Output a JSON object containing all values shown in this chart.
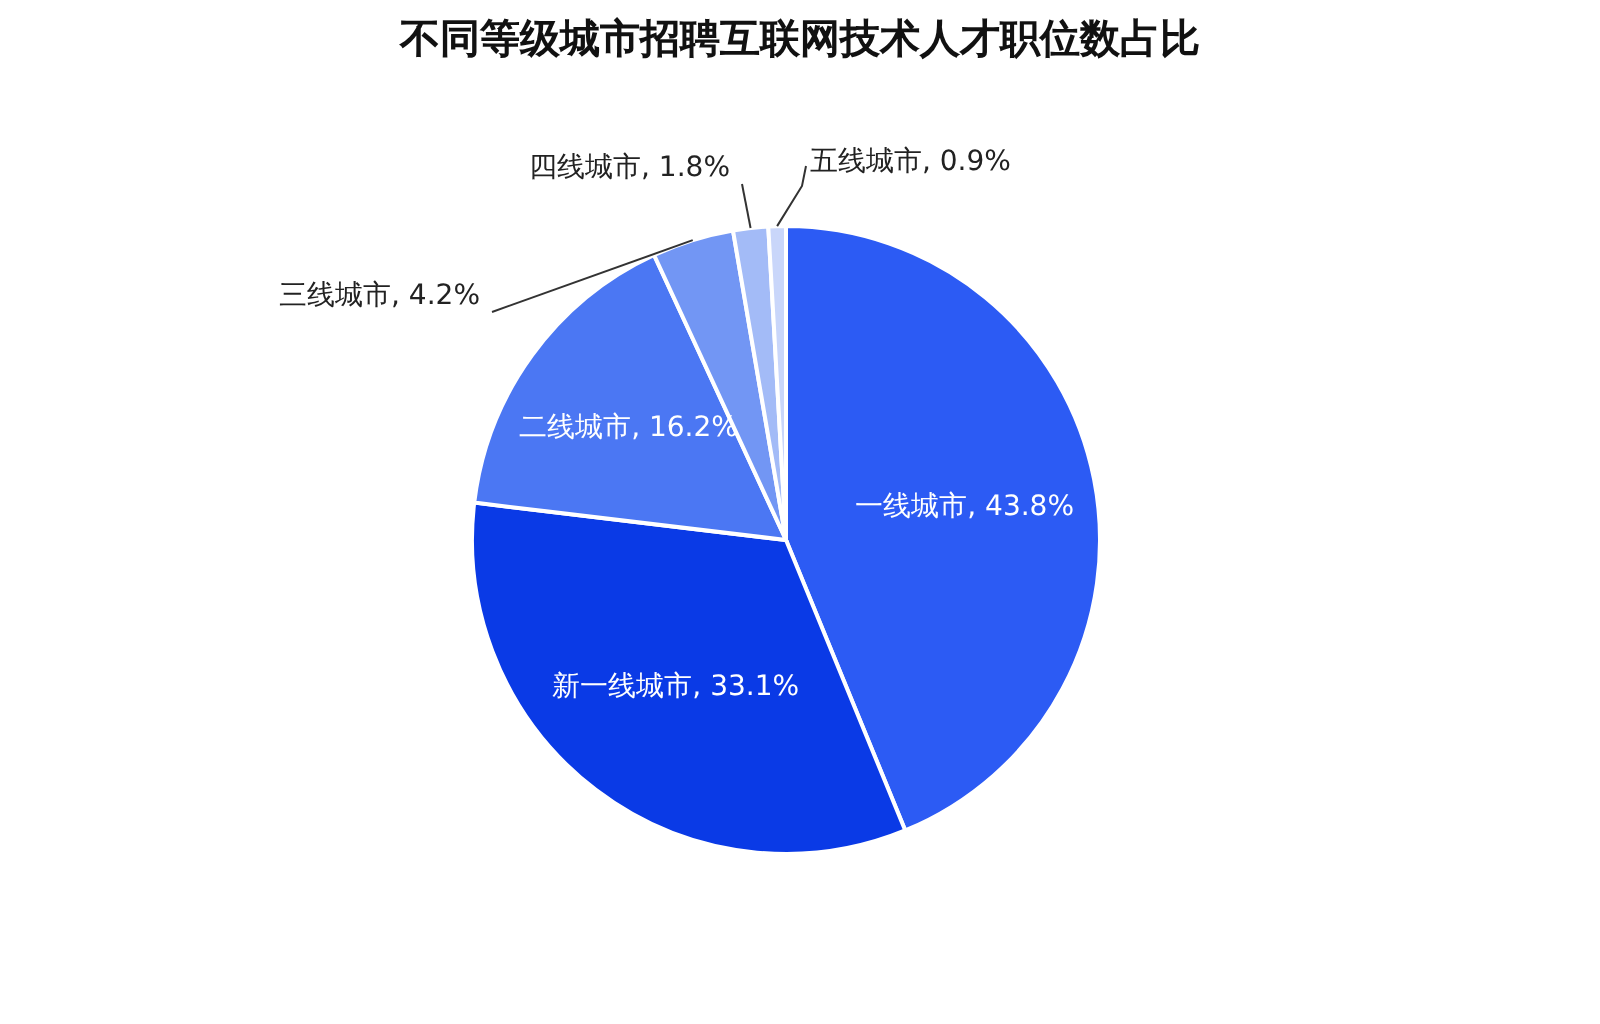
{
  "chart_data": {
    "type": "pie",
    "title": "不同等级城市招聘互联网技术人才职位数占比",
    "categories": [
      "一线城市",
      "新一线城市",
      "二线城市",
      "三线城市",
      "四线城市",
      "五线城市"
    ],
    "values": [
      43.8,
      33.1,
      16.2,
      4.2,
      1.8,
      0.9
    ],
    "value_labels": [
      ", 43.8%",
      ", 33.1%",
      ", 16.2%",
      ", 4.2%",
      ", 1.8%",
      ", 0.9%"
    ],
    "colors": [
      "#2c5bf4",
      "#0a3ae6",
      "#4b77f3",
      "#7296f4",
      "#a3bbf7",
      "#c9d6fa"
    ],
    "legend": false
  }
}
